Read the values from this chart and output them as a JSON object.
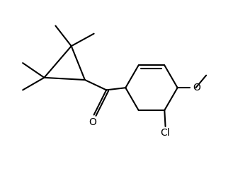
{
  "background": "#ffffff",
  "line_color": "#000000",
  "line_width": 1.5,
  "font_size": 9,
  "figsize": [
    3.29,
    2.42
  ],
  "dpi": 100,
  "xlim": [
    0,
    10
  ],
  "ylim": [
    0,
    7.5
  ]
}
